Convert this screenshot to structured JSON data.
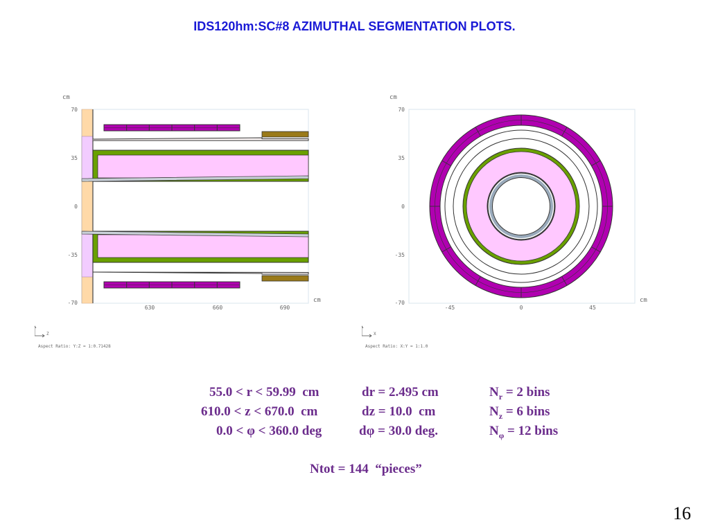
{
  "title": "IDS120hm:SC#8 AZIMUTHAL SEGMENTATION PLOTS.",
  "plot_left": {
    "unit_top": "cm",
    "unit_axis": "cm",
    "y_ticks": [
      "70",
      "35",
      "0",
      "-35",
      "-70"
    ],
    "x_ticks": [
      "630",
      "660",
      "690"
    ],
    "axis_y": "Y",
    "axis_x": "Z",
    "aspect_ratio": "Aspect Ratio: Y:Z = 1:0.71428"
  },
  "plot_right": {
    "unit_top": "cm",
    "unit_axis": "cm",
    "y_ticks": [
      "70",
      "35",
      "0",
      "-35",
      "-70"
    ],
    "x_ticks": [
      "-45",
      "0",
      "45"
    ],
    "axis_y": "Y",
    "axis_x": "X",
    "aspect_ratio": "Aspect Ratio: X:Y = 1:1.0"
  },
  "params": {
    "r_range": "55.0 < r < 59.99  cm",
    "dr": "dr = 2.495 cm",
    "nr_base": "N",
    "nr_sub": "r",
    "nr_value": " = 2 bins",
    "z_range": "610.0 < z < 670.0  cm",
    "dz": "dz = 10.0  cm",
    "nz_base": "N",
    "nz_sub": "z",
    "nz_value": " = 6 bins",
    "phi_range": "0.0 < φ < 360.0 deg",
    "dphi": "dφ = 30.0 deg.",
    "nphi_base": "N",
    "nphi_sub": "φ",
    "nphi_value": " = 12 bins",
    "ntot": "Ntot = 144  “pieces”"
  },
  "page_number": "16",
  "colors": {
    "title": "#1a1ad6",
    "params": "#6b2c8c",
    "magenta": "#b000b0",
    "pink": "#ffc8ff",
    "green": "#6aa000",
    "olive": "#9a7a1a",
    "peach": "#ffd9a8",
    "lavender": "#f2ccff",
    "cream": "#fcf6f6"
  }
}
